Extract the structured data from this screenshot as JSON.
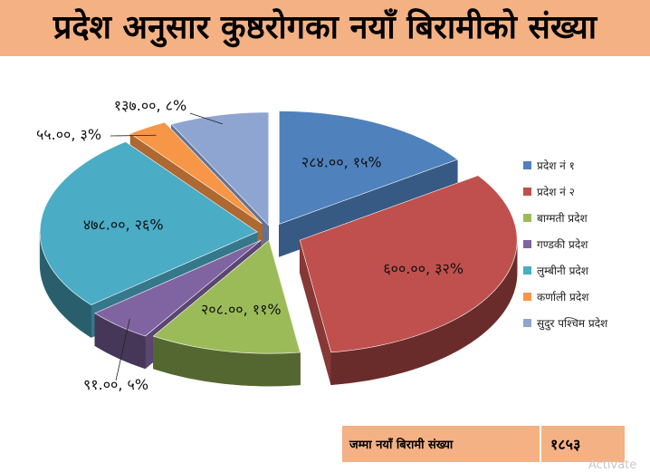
{
  "title": "प्रदेश अनुसार कुष्ठरोगका नयाँ बिरामीको संख्या",
  "chart_data": {
    "type": "pie",
    "title": "प्रदेश अनुसार कुष्ठरोगका नयाँ बिरामीको संख्या",
    "legend_position": "right",
    "exploded": true,
    "three_d": true,
    "categories": [
      "प्रदेश नं १",
      "प्रदेश नं २",
      "बाग्मती प्रदेश",
      "गण्डकी प्रदेश",
      "लुम्बीनी प्रदेश",
      "कर्णाली प्रदेश",
      "सुदुर पश्चिम प्रदेश"
    ],
    "values": [
      284,
      600,
      208,
      91,
      478,
      55,
      137
    ],
    "percentages": [
      15,
      32,
      11,
      5,
      26,
      3,
      8
    ],
    "data_labels": [
      "२८४.००, १५%",
      "६००.००, ३२%",
      "२०८.००, ११%",
      "९१.००, ५%",
      "४७८.००, २६%",
      "५५.००, ३%",
      "१३७.००, ८%"
    ],
    "colors": [
      "#4f81bd",
      "#c0504d",
      "#9bbb59",
      "#8064a2",
      "#4bacc6",
      "#f79646",
      "#8fa5d1"
    ]
  },
  "total": {
    "label": "जम्मा नयाँ बिरामी संख्या",
    "value": "१८५३"
  },
  "watermark": "Activate"
}
